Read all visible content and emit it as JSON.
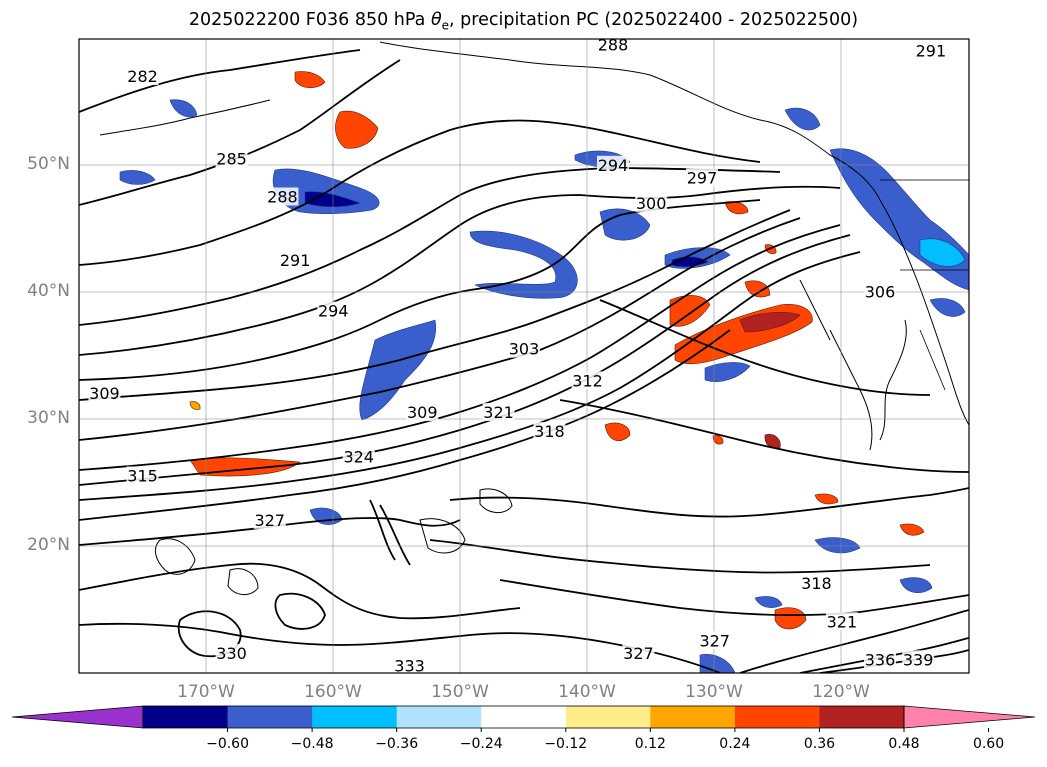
{
  "title": {
    "prefix": "2025022200 F036 850 hPa ",
    "theta": "θ",
    "theta_sub": "e",
    "suffix": ", precipitation PC (2025022400 - 2025022500)"
  },
  "map": {
    "lat_labels": [
      "50°N",
      "40°N",
      "30°N",
      "20°N"
    ],
    "lon_labels": [
      "170°W",
      "160°W",
      "150°W",
      "140°W",
      "130°W",
      "120°W"
    ],
    "extent": {
      "lon_min": -180,
      "lon_max": -110,
      "lat_min": 10,
      "lat_max": 60
    },
    "gridlines": true
  },
  "contours": {
    "variable": "850 hPa theta-e (K)",
    "labels": [
      {
        "text": "282",
        "lon": -175,
        "lat": 57
      },
      {
        "text": "285",
        "lon": -168,
        "lat": 50.5
      },
      {
        "text": "288",
        "lon": -164,
        "lat": 47.5
      },
      {
        "text": "291",
        "lon": -163,
        "lat": 42.5
      },
      {
        "text": "294",
        "lon": -160,
        "lat": 38.5
      },
      {
        "text": "294",
        "lon": -138,
        "lat": 50
      },
      {
        "text": "297",
        "lon": -131,
        "lat": 49
      },
      {
        "text": "300",
        "lon": -135,
        "lat": 47
      },
      {
        "text": "303",
        "lon": -145,
        "lat": 35.5
      },
      {
        "text": "306",
        "lon": -117,
        "lat": 40
      },
      {
        "text": "309",
        "lon": -178,
        "lat": 32
      },
      {
        "text": "309",
        "lon": -153,
        "lat": 30.5
      },
      {
        "text": "312",
        "lon": -140,
        "lat": 33
      },
      {
        "text": "315",
        "lon": -175,
        "lat": 25.5
      },
      {
        "text": "318",
        "lon": -143,
        "lat": 29
      },
      {
        "text": "321",
        "lon": -147,
        "lat": 30.5
      },
      {
        "text": "324",
        "lon": -158,
        "lat": 27
      },
      {
        "text": "327",
        "lon": -165,
        "lat": 22
      },
      {
        "text": "330",
        "lon": -168,
        "lat": 11.5
      },
      {
        "text": "333",
        "lon": -154,
        "lat": 10.5
      },
      {
        "text": "327",
        "lon": -136,
        "lat": 11.5
      },
      {
        "text": "327",
        "lon": -130,
        "lat": 12.5
      },
      {
        "text": "318",
        "lon": -122,
        "lat": 17
      },
      {
        "text": "321",
        "lon": -120,
        "lat": 14
      },
      {
        "text": "336",
        "lon": -117,
        "lat": 11
      },
      {
        "text": "339",
        "lon": -114,
        "lat": 11
      },
      {
        "text": "288",
        "lon": -138,
        "lat": 59.5
      },
      {
        "text": "291",
        "lon": -113,
        "lat": 59
      }
    ]
  },
  "colorbar": {
    "ticks": [
      "−0.60",
      "−0.48",
      "−0.36",
      "−0.24",
      "−0.12",
      "0.12",
      "0.24",
      "0.36",
      "0.48",
      "0.60"
    ],
    "colors": [
      "#9932CC",
      "#00008B",
      "#3A5FCD",
      "#00BFFF",
      "#B0E2FF",
      "#FFFFFF",
      "#FFEC8B",
      "#FFA500",
      "#FF4500",
      "#B22222",
      "#FF82AB"
    ],
    "extend": "both"
  }
}
